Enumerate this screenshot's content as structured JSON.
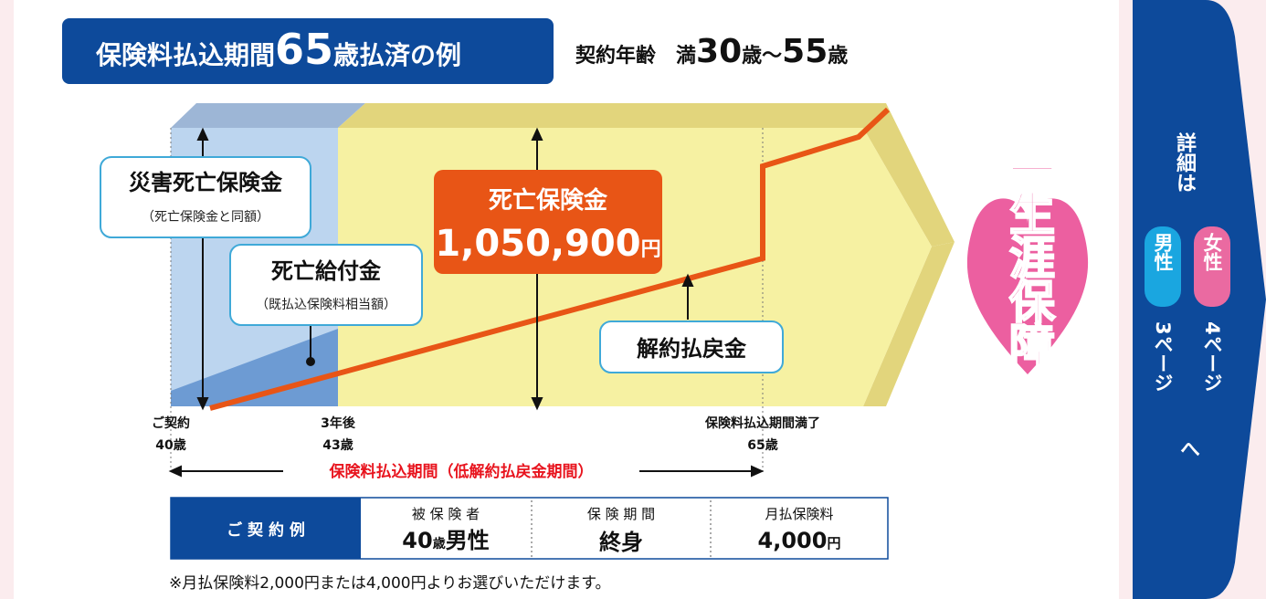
{
  "title": {
    "prefix": "保険料払込期間",
    "age": "65",
    "suffix": "歳払済の例"
  },
  "contract_age": {
    "label": "契約年齢　満",
    "from": "30",
    "sep": "歳〜",
    "to": "55",
    "unit": "歳"
  },
  "callouts": {
    "accident": {
      "title": "災害死亡保険金",
      "note": "（死亡保険金と同額）"
    },
    "benefit": {
      "title": "死亡給付金",
      "note": "（既払込保険料相当額）"
    },
    "death": {
      "title": "死亡保険金",
      "amount": "1,050,900",
      "unit": "円"
    },
    "surrender": {
      "title": "解約払戻金"
    }
  },
  "lifetime": "一生涯保障",
  "timeline": [
    {
      "top": "ご契約",
      "bottom": "40歳"
    },
    {
      "top": "3年後",
      "bottom": "43歳"
    },
    {
      "top": "保険料払込期間満了",
      "bottom": "65歳"
    }
  ],
  "period": "保険料払込期間（低解約払戻金期間）",
  "table": {
    "header": "ご 契 約 例",
    "cells": [
      {
        "label": "被 保 険 者",
        "value": "40",
        "unit": "歳",
        "extra": "男性"
      },
      {
        "label": "保 険 期 間",
        "value": "終身"
      },
      {
        "label": "月払保険料",
        "value": "4,000",
        "unit": "円"
      }
    ]
  },
  "footnote": "※月払保険料2,000円または4,000円よりお選びいただけます。",
  "side": {
    "lead": "詳細は",
    "male": "男性",
    "female": "女性",
    "male_page": "3ページ",
    "female_page": "4ページ",
    "to": "へ"
  }
}
